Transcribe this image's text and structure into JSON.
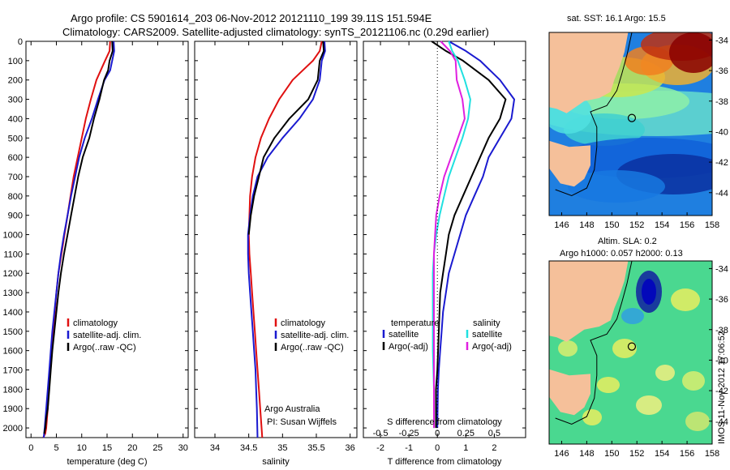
{
  "header": {
    "line1": "Argo profile: CS 5901614_203 06-Nov-2012 20121110_199 39.11S 151.594E",
    "line2": "Climatology: CARS2009. Satellite-adjusted climatology: synTS_20121106.nc (0.29d earlier)"
  },
  "colors": {
    "climatology": "#e01010",
    "satellite": "#1a1ad0",
    "argo": "#000000",
    "s_satellite": "#20e0e0",
    "s_argo": "#e020e0",
    "land": "#f5c09a"
  },
  "chart_data": [
    {
      "type": "line",
      "name": "temperature-profile",
      "xlabel": "temperature (deg C)",
      "ylabel": "",
      "xlim": [
        -1,
        31
      ],
      "ylim": [
        0,
        2050
      ],
      "x_ticks": [
        0,
        5,
        10,
        15,
        20,
        25,
        30
      ],
      "y_ticks": [
        0,
        100,
        200,
        300,
        400,
        500,
        600,
        700,
        800,
        900,
        1000,
        1100,
        1200,
        1300,
        1400,
        1500,
        1600,
        1700,
        1800,
        1900,
        2000
      ],
      "y_reversed": true,
      "legend": [
        "climatology",
        "satellite-adj. clim.",
        "Argo(..raw -QC)"
      ],
      "legend_placement": "lower-center",
      "series": [
        {
          "name": "climatology",
          "color": "#e01010",
          "x": [
            15.6,
            15.5,
            14.6,
            12.9,
            11.8,
            10.8,
            10.0,
            9.2,
            8.4,
            7.8,
            7.2,
            6.6,
            6.0,
            5.4,
            5.0,
            4.7,
            4.4,
            4.1,
            3.8,
            3.5,
            3.3,
            3.0,
            2.8,
            2.6,
            2.4
          ],
          "depth": [
            0,
            50,
            100,
            200,
            300,
            400,
            500,
            600,
            700,
            800,
            900,
            1000,
            1100,
            1200,
            1300,
            1400,
            1500,
            1600,
            1700,
            1800,
            1900,
            2000,
            2030,
            2040,
            2050
          ]
        },
        {
          "name": "satellite-adj. clim.",
          "color": "#1a1ad0",
          "x": [
            16.3,
            16.4,
            16.0,
            15.6,
            14.5,
            13.2,
            12.0,
            10.6,
            9.5,
            8.7,
            7.9,
            7.2,
            6.5,
            5.9,
            5.4,
            5.0,
            4.6,
            4.2,
            3.9,
            3.6,
            3.3,
            3.0,
            2.7,
            2.5
          ],
          "depth": [
            0,
            50,
            100,
            150,
            200,
            300,
            400,
            500,
            600,
            700,
            800,
            900,
            1000,
            1100,
            1200,
            1300,
            1400,
            1500,
            1600,
            1700,
            1800,
            1900,
            2000,
            2050
          ]
        },
        {
          "name": "Argo(..raw -QC)",
          "color": "#000000",
          "x": [
            16.0,
            16.1,
            15.5,
            15.2,
            14.4,
            13.5,
            12.4,
            11.5,
            10.2,
            9.3,
            8.6,
            7.9,
            7.2,
            6.5,
            5.9,
            5.4,
            5.0,
            4.6,
            4.2,
            3.9,
            3.6,
            3.3,
            3.0,
            2.8,
            2.6
          ],
          "depth": [
            0,
            50,
            100,
            150,
            200,
            300,
            400,
            500,
            600,
            700,
            800,
            900,
            1000,
            1100,
            1200,
            1300,
            1400,
            1500,
            1600,
            1700,
            1800,
            1900,
            1950,
            2000,
            2030
          ]
        }
      ]
    },
    {
      "type": "line",
      "name": "salinity-profile",
      "xlabel": "salinity",
      "ylabel": "",
      "xlim": [
        33.7,
        36.1
      ],
      "ylim": [
        0,
        2050
      ],
      "x_ticks": [
        34,
        34.5,
        35,
        35.5,
        36
      ],
      "y_reversed": true,
      "legend": [
        "climatology",
        "satellite-adj. clim.",
        "Argo(..raw -QC)"
      ],
      "legend_placement": "lower-right",
      "annotations": [
        "Argo Australia",
        "PI: Susan Wijffels"
      ],
      "series": [
        {
          "name": "climatology",
          "color": "#e01010",
          "x": [
            35.58,
            35.55,
            35.45,
            35.15,
            34.95,
            34.8,
            34.68,
            34.6,
            34.55,
            34.52,
            34.51,
            34.5,
            34.51,
            34.53,
            34.55,
            34.57,
            34.59,
            34.61,
            34.63,
            34.65,
            34.67,
            34.69,
            34.7
          ],
          "depth": [
            0,
            50,
            100,
            200,
            300,
            400,
            500,
            600,
            700,
            800,
            900,
            1000,
            1100,
            1200,
            1300,
            1400,
            1500,
            1600,
            1700,
            1800,
            1900,
            2000,
            2050
          ]
        },
        {
          "name": "satellite-adj. clim.",
          "color": "#1a1ad0",
          "x": [
            35.62,
            35.63,
            35.58,
            35.55,
            35.45,
            35.25,
            35.0,
            34.78,
            34.63,
            34.56,
            34.52,
            34.49,
            34.49,
            34.5,
            34.52,
            34.54,
            34.56,
            34.58,
            34.6,
            34.61,
            34.62,
            34.63
          ],
          "depth": [
            0,
            50,
            100,
            200,
            300,
            400,
            500,
            600,
            700,
            800,
            900,
            1000,
            1100,
            1200,
            1300,
            1400,
            1500,
            1600,
            1700,
            1800,
            1900,
            2050
          ]
        },
        {
          "name": "Argo(..raw -QC)",
          "color": "#000000",
          "x": [
            35.6,
            35.61,
            35.55,
            35.52,
            35.38,
            35.1,
            34.88,
            34.72,
            34.65,
            34.58,
            34.53,
            34.5
          ],
          "depth": [
            0,
            50,
            100,
            200,
            300,
            400,
            500,
            600,
            700,
            800,
            900,
            1000
          ]
        }
      ]
    },
    {
      "type": "line",
      "name": "difference-profile",
      "xlabel": "T difference from climatology",
      "xlabel_top": "S difference from climatology",
      "ylabel": "",
      "xlim": [
        -2.6,
        3.1
      ],
      "ylim": [
        0,
        2050
      ],
      "x_ticks": [
        -2,
        -1,
        0,
        1,
        2
      ],
      "x_ticks_s": [
        "-0.5",
        "-0.25",
        "0",
        "0.25",
        "0.5"
      ],
      "x_ticks_s_values": [
        -0.5,
        -0.25,
        0,
        0.25,
        0.5
      ],
      "y_reversed": true,
      "legend_t_title": "temperature",
      "legend_s_title": "salinity",
      "legend_t": [
        "satellite",
        "Argo(-adj)"
      ],
      "legend_s": [
        "satellite",
        "Argo(-adj)"
      ],
      "series": [
        {
          "name": "T satellite",
          "color": "#1a1ad0",
          "x": [
            0.4,
            1.0,
            1.5,
            2.2,
            2.7,
            2.6,
            2.2,
            1.8,
            1.6,
            1.3,
            1.0,
            0.8,
            0.6,
            0.4,
            0.3,
            0.2,
            0.15,
            0.1,
            0.05,
            0.02,
            0.0
          ],
          "depth": [
            0,
            50,
            100,
            200,
            300,
            400,
            500,
            600,
            700,
            800,
            900,
            1000,
            1100,
            1200,
            1300,
            1400,
            1500,
            1600,
            1700,
            1800,
            2000
          ]
        },
        {
          "name": "T Argo(-adj)",
          "color": "#000000",
          "x": [
            -0.2,
            0.3,
            0.9,
            1.8,
            2.4,
            2.2,
            1.8,
            1.5,
            1.2,
            0.9,
            0.6,
            0.4,
            0.3,
            0.2,
            0.1,
            0.05,
            0.0,
            -0.05,
            -0.05,
            -0.05
          ],
          "depth": [
            0,
            50,
            100,
            200,
            300,
            400,
            500,
            600,
            700,
            800,
            900,
            1000,
            1100,
            1200,
            1300,
            1500,
            1700,
            1800,
            1900,
            2000
          ]
        },
        {
          "name": "S satellite",
          "color": "#20e0e0",
          "x": [
            0.1,
            0.13,
            0.18,
            0.24,
            0.29,
            0.27,
            0.22,
            0.16,
            0.1,
            0.06,
            0.02,
            -0.01,
            -0.03,
            -0.04,
            -0.04,
            -0.04,
            -0.03,
            -0.03
          ],
          "depth": [
            0,
            50,
            100,
            200,
            300,
            400,
            500,
            600,
            700,
            800,
            900,
            1000,
            1100,
            1200,
            1400,
            1600,
            1800,
            2000
          ]
        },
        {
          "name": "S Argo(-adj)",
          "color": "#e020e0",
          "x": [
            0.03,
            0.11,
            0.16,
            0.17,
            0.22,
            0.24,
            0.18,
            0.12,
            0.06,
            0.02,
            -0.01,
            -0.02,
            -0.03,
            -0.03,
            -0.03,
            -0.03,
            -0.03,
            -0.03
          ],
          "depth": [
            0,
            50,
            100,
            200,
            300,
            400,
            500,
            600,
            700,
            800,
            900,
            1000,
            1100,
            1200,
            1400,
            1600,
            1800,
            2000
          ]
        }
      ]
    },
    {
      "type": "heatmap",
      "name": "sst-map",
      "title": "sat. SST: 16.1 Argo: 15.5",
      "xlim": [
        145,
        158
      ],
      "ylim": [
        -45.5,
        -33.5
      ],
      "x_ticks": [
        146,
        148,
        150,
        152,
        154,
        156,
        158
      ],
      "y_ticks": [
        -34,
        -36,
        -38,
        -40,
        -42,
        -44
      ],
      "argo_position": {
        "lon": 151.594,
        "lat": -39.11
      }
    },
    {
      "type": "heatmap",
      "name": "sla-map",
      "title_line1": "Altim. SLA: 0.2",
      "title_line2": "Argo h1000: 0.057 h2000: 0.13",
      "xlim": [
        145,
        158
      ],
      "ylim": [
        -45.5,
        -33.5
      ],
      "x_ticks": [
        146,
        148,
        150,
        152,
        154,
        156,
        158
      ],
      "y_ticks": [
        -34,
        -36,
        -38,
        -40,
        -42,
        -44
      ],
      "argo_position": {
        "lon": 151.594,
        "lat": -39.11
      }
    }
  ],
  "footer": {
    "stamp": "IMOS 11-Nov-2012 17:06:52"
  }
}
